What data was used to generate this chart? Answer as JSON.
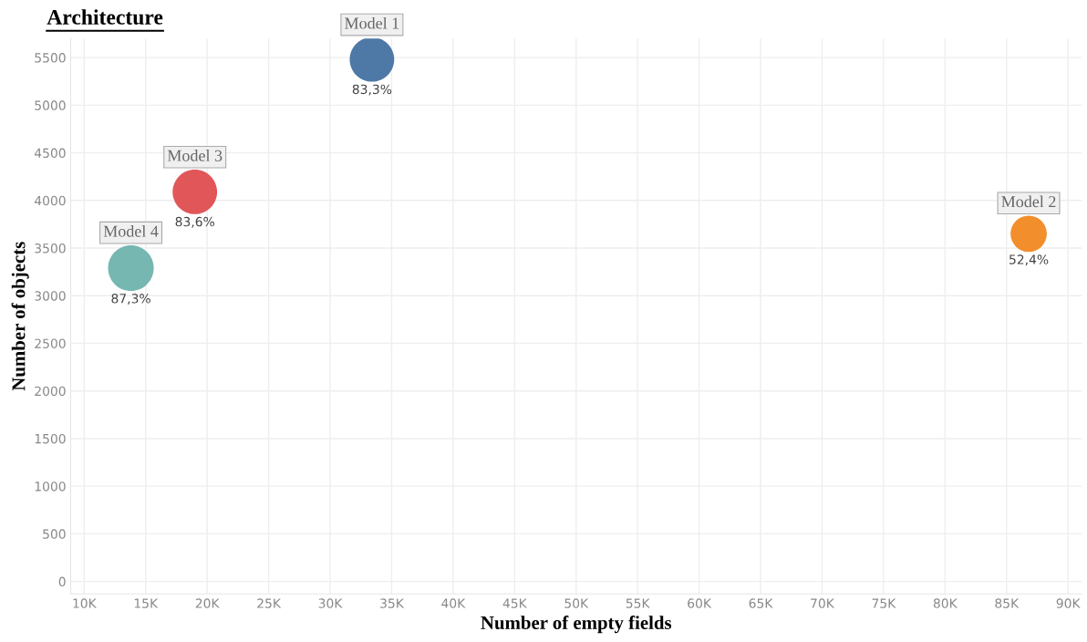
{
  "chart_data": {
    "type": "bubble",
    "title": "Architecture",
    "xlabel": "Number of empty fields",
    "ylabel": "Number of objects",
    "series": [
      {
        "name": "Model 1",
        "color": "#4e79a7",
        "x": [
          33400
        ],
        "values": [
          5480
        ],
        "sizes": [
          0.95
        ]
      },
      {
        "name": "Model 2",
        "color": "#f28e2b",
        "x": [
          86800
        ],
        "values": [
          3650
        ],
        "sizes": [
          0.63
        ]
      },
      {
        "name": "Model 3",
        "color": "#e15759",
        "x": [
          19000
        ],
        "values": [
          4090
        ],
        "sizes": [
          0.95
        ]
      },
      {
        "name": "Model 4",
        "color": "#76b7b2",
        "x": [
          13800
        ],
        "values": [
          3290
        ],
        "sizes": [
          1
        ]
      }
    ],
    "annotations": [
      {
        "text": "83,3%",
        "x": 33400,
        "y": 5480
      },
      {
        "text": "52,4%",
        "x": 86800,
        "y": 3650
      },
      {
        "text": "83,6%",
        "x": 19000,
        "y": 4090
      },
      {
        "text": "87,3%",
        "x": 13800,
        "y": 3290
      }
    ],
    "xlim": [
      8900,
      91100
    ],
    "ylim": [
      -130,
      5700
    ],
    "xticks": [
      {
        "value": 10000,
        "label": "10K"
      },
      {
        "value": 15000,
        "label": "15K"
      },
      {
        "value": 20000,
        "label": "20K"
      },
      {
        "value": 25000,
        "label": "25K"
      },
      {
        "value": 30000,
        "label": "30K"
      },
      {
        "value": 35000,
        "label": "35K"
      },
      {
        "value": 40000,
        "label": "40K"
      },
      {
        "value": 45000,
        "label": "45K"
      },
      {
        "value": 50000,
        "label": "50K"
      },
      {
        "value": 55000,
        "label": "55K"
      },
      {
        "value": 60000,
        "label": "60K"
      },
      {
        "value": 65000,
        "label": "65K"
      },
      {
        "value": 70000,
        "label": "70K"
      },
      {
        "value": 75000,
        "label": "75K"
      },
      {
        "value": 80000,
        "label": "80K"
      },
      {
        "value": 85000,
        "label": "85K"
      },
      {
        "value": 90000,
        "label": "90K"
      }
    ],
    "yticks": [
      0,
      500,
      1000,
      1500,
      2000,
      2500,
      3000,
      3500,
      4000,
      4500,
      5000,
      5500
    ],
    "grid": true
  }
}
